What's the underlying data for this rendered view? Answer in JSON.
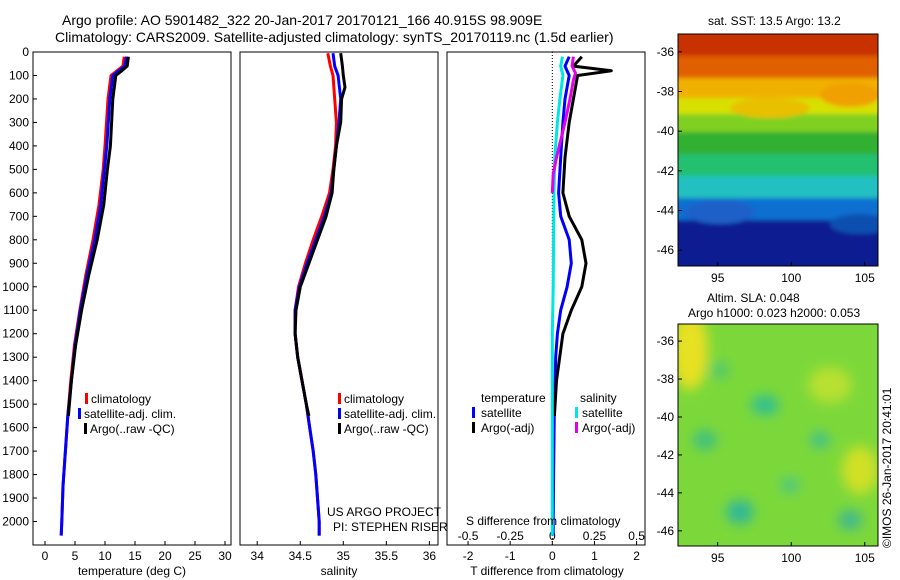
{
  "title_line1": "Argo profile: AO 5901482_322 20-Jan-2017 20170121_166 40.915S 98.909E",
  "title_line2": "Climatology: CARS2009. Satellite-adjusted climatology: synTS_20170119.nc (1.5d earlier)",
  "credits": {
    "line1": "US ARGO PROJECT",
    "line2": "PI: STEPHEN RISER"
  },
  "side_stamp": "©IMOS 26-Jan-2017 20:41:01",
  "colors": {
    "red": "#ff0000",
    "blue": "#0000ff",
    "black": "#000000",
    "cyan": "#00e5e5",
    "magenta": "#e600e6"
  },
  "chart_data": [
    {
      "type": "line",
      "xlabel": "temperature (deg C)",
      "ylabel": "",
      "xlim": [
        -2,
        31
      ],
      "ylim": [
        2100,
        0
      ],
      "xticks": [
        0,
        5,
        10,
        15,
        20,
        25,
        30
      ],
      "yticks": [
        0,
        100,
        200,
        300,
        400,
        500,
        600,
        700,
        800,
        900,
        1000,
        1100,
        1200,
        1300,
        1400,
        1500,
        1600,
        1700,
        1800,
        1900,
        2000
      ],
      "legend": [
        "climatology",
        "satellite-adj. clim.",
        "Argo(..raw -QC)"
      ],
      "series": [
        {
          "name": "climatology",
          "color": "#ff0000",
          "points": [
            [
              13.2,
              20
            ],
            [
              13.0,
              60
            ],
            [
              12.0,
              80
            ],
            [
              11.0,
              100
            ],
            [
              10.5,
              200
            ],
            [
              10.0,
              400
            ],
            [
              9.7,
              500
            ],
            [
              9.0,
              650
            ],
            [
              8.0,
              800
            ],
            [
              6.8,
              950
            ],
            [
              5.8,
              1100
            ],
            [
              4.9,
              1250
            ],
            [
              4.3,
              1400
            ],
            [
              3.8,
              1550
            ],
            [
              3.4,
              1700
            ],
            [
              3.0,
              1850
            ],
            [
              2.8,
              2000
            ],
            [
              2.7,
              2060
            ]
          ]
        },
        {
          "name": "satellite-adj. clim.",
          "color": "#0000ff",
          "points": [
            [
              13.6,
              20
            ],
            [
              13.3,
              60
            ],
            [
              12.3,
              80
            ],
            [
              11.3,
              100
            ],
            [
              10.8,
              200
            ],
            [
              10.3,
              400
            ],
            [
              9.9,
              500
            ],
            [
              9.3,
              650
            ],
            [
              8.3,
              800
            ],
            [
              7.0,
              950
            ],
            [
              5.9,
              1100
            ],
            [
              5.0,
              1250
            ],
            [
              4.4,
              1400
            ],
            [
              3.8,
              1550
            ],
            [
              3.4,
              1700
            ],
            [
              3.0,
              1850
            ],
            [
              2.8,
              2000
            ],
            [
              2.7,
              2060
            ]
          ]
        },
        {
          "name": "Argo(..raw -QC)",
          "color": "#000000",
          "points": [
            [
              13.9,
              20
            ],
            [
              13.7,
              60
            ],
            [
              12.8,
              80
            ],
            [
              11.8,
              100
            ],
            [
              11.3,
              200
            ],
            [
              10.9,
              400
            ],
            [
              10.4,
              500
            ],
            [
              9.8,
              650
            ],
            [
              8.7,
              800
            ],
            [
              7.3,
              950
            ],
            [
              6.1,
              1100
            ],
            [
              5.1,
              1250
            ],
            [
              4.4,
              1400
            ],
            [
              3.9,
              1550
            ]
          ]
        }
      ]
    },
    {
      "type": "line",
      "xlabel": "salinity",
      "ylabel": "",
      "xlim": [
        33.8,
        36.1
      ],
      "ylim": [
        2100,
        0
      ],
      "xticks": [
        34,
        34.5,
        35,
        35.5,
        36
      ],
      "legend": [
        "climatology",
        "satellite-adj. clim.",
        "Argo(..raw -QC)"
      ],
      "series": [
        {
          "name": "climatology",
          "color": "#ff0000",
          "points": [
            [
              34.82,
              5
            ],
            [
              34.85,
              60
            ],
            [
              34.88,
              100
            ],
            [
              34.9,
              200
            ],
            [
              34.92,
              300
            ],
            [
              34.91,
              400
            ],
            [
              34.88,
              500
            ],
            [
              34.84,
              600
            ],
            [
              34.75,
              700
            ],
            [
              34.65,
              800
            ],
            [
              34.56,
              900
            ],
            [
              34.48,
              1000
            ],
            [
              34.44,
              1100
            ],
            [
              34.44,
              1200
            ],
            [
              34.47,
              1300
            ],
            [
              34.52,
              1400
            ],
            [
              34.57,
              1500
            ],
            [
              34.61,
              1600
            ],
            [
              34.65,
              1700
            ],
            [
              34.68,
              1800
            ],
            [
              34.7,
              1900
            ],
            [
              34.72,
              2000
            ],
            [
              34.72,
              2060
            ]
          ]
        },
        {
          "name": "satellite-adj. clim.",
          "color": "#0000ff",
          "points": [
            [
              34.88,
              5
            ],
            [
              34.9,
              60
            ],
            [
              34.94,
              100
            ],
            [
              34.97,
              200
            ],
            [
              34.95,
              300
            ],
            [
              34.92,
              400
            ],
            [
              34.89,
              500
            ],
            [
              34.86,
              600
            ],
            [
              34.78,
              700
            ],
            [
              34.68,
              800
            ],
            [
              34.58,
              900
            ],
            [
              34.49,
              1000
            ],
            [
              34.44,
              1100
            ],
            [
              34.44,
              1200
            ],
            [
              34.47,
              1300
            ],
            [
              34.52,
              1400
            ],
            [
              34.57,
              1500
            ],
            [
              34.61,
              1600
            ],
            [
              34.65,
              1700
            ],
            [
              34.68,
              1800
            ],
            [
              34.7,
              1900
            ],
            [
              34.72,
              2000
            ],
            [
              34.72,
              2060
            ]
          ]
        },
        {
          "name": "Argo(..raw -QC)",
          "color": "#000000",
          "points": [
            [
              34.97,
              5
            ],
            [
              34.99,
              60
            ],
            [
              35.0,
              100
            ],
            [
              35.02,
              150
            ],
            [
              34.98,
              200
            ],
            [
              34.97,
              300
            ],
            [
              34.92,
              400
            ],
            [
              34.89,
              500
            ],
            [
              34.87,
              600
            ],
            [
              34.8,
              700
            ],
            [
              34.7,
              800
            ],
            [
              34.6,
              900
            ],
            [
              34.5,
              1000
            ],
            [
              34.45,
              1100
            ],
            [
              34.44,
              1200
            ],
            [
              34.47,
              1300
            ],
            [
              34.52,
              1400
            ],
            [
              34.57,
              1500
            ],
            [
              34.6,
              1550
            ]
          ]
        }
      ]
    },
    {
      "type": "line",
      "xlabel": "T difference from climatology",
      "xlabel_top": "S difference from climatology",
      "xlim": [
        -2.5,
        2.2
      ],
      "ylim": [
        2100,
        0
      ],
      "xticks": [
        -2,
        -1,
        0,
        1,
        2
      ],
      "xticks_S": [
        -0.5,
        -0.25,
        0,
        0.25,
        0.5
      ],
      "legend_T_title": "temperature",
      "legend_S_title": "salinity",
      "legend": [
        "satellite",
        "Argo(-adj)",
        "satellite",
        "Argo(-adj)"
      ],
      "series": [
        {
          "name": "satellite",
          "color": "#0000ff",
          "points": [
            [
              0.4,
              20
            ],
            [
              0.3,
              60
            ],
            [
              0.4,
              100
            ],
            [
              0.3,
              200
            ],
            [
              0.25,
              300
            ],
            [
              0.2,
              450
            ],
            [
              0.15,
              600
            ],
            [
              0.2,
              700
            ],
            [
              0.4,
              800
            ],
            [
              0.45,
              900
            ],
            [
              0.35,
              1000
            ],
            [
              0.2,
              1100
            ],
            [
              0.12,
              1200
            ],
            [
              0.08,
              1300
            ],
            [
              0.05,
              1500
            ],
            [
              0.03,
              1800
            ],
            [
              0.02,
              2000
            ],
            [
              0.02,
              2060
            ]
          ]
        },
        {
          "name": "Argo(-adj)",
          "color": "#000000",
          "points": [
            [
              0.7,
              20
            ],
            [
              0.5,
              60
            ],
            [
              1.4,
              80
            ],
            [
              0.6,
              100
            ],
            [
              0.5,
              200
            ],
            [
              0.4,
              300
            ],
            [
              0.3,
              450
            ],
            [
              0.25,
              600
            ],
            [
              0.4,
              700
            ],
            [
              0.7,
              800
            ],
            [
              0.8,
              900
            ],
            [
              0.7,
              1000
            ],
            [
              0.45,
              1100
            ],
            [
              0.25,
              1200
            ],
            [
              0.1,
              1400
            ],
            [
              0.05,
              1550
            ]
          ]
        },
        {
          "name": "satellite",
          "color": "#00e5e5",
          "points": [
            [
              0.24,
              20
            ],
            [
              0.2,
              60
            ],
            [
              0.25,
              100
            ],
            [
              0.18,
              200
            ],
            [
              0.12,
              300
            ],
            [
              0.06,
              450
            ],
            [
              0.04,
              600
            ],
            [
              0.03,
              800
            ],
            [
              0.02,
              1000
            ],
            [
              0.0,
              1200
            ],
            [
              0.0,
              1500
            ],
            [
              0.0,
              1800
            ],
            [
              0.0,
              2000
            ],
            [
              0.0,
              2060
            ]
          ]
        },
        {
          "name": "Argo(-adj)",
          "color": "#e600e6",
          "points": [
            [
              0.5,
              20
            ],
            [
              0.47,
              60
            ],
            [
              0.55,
              90
            ],
            [
              0.5,
              120
            ],
            [
              0.42,
              200
            ],
            [
              0.3,
              300
            ],
            [
              0.1,
              450
            ],
            [
              0.02,
              520
            ],
            [
              0.0,
              600
            ]
          ]
        }
      ]
    }
  ],
  "maps": [
    {
      "title": "sat. SST: 13.5 Argo: 13.2",
      "xticks": [
        95,
        100,
        105
      ],
      "yticks": [
        -36,
        -38,
        -40,
        -42,
        -44,
        -46
      ]
    },
    {
      "title_line1": "Altim. SLA: 0.048",
      "title_line2": "Argo h1000: 0.023 h2000: 0.053",
      "xticks": [
        95,
        100,
        105
      ],
      "yticks": [
        -36,
        -38,
        -40,
        -42,
        -44,
        -46
      ]
    }
  ]
}
